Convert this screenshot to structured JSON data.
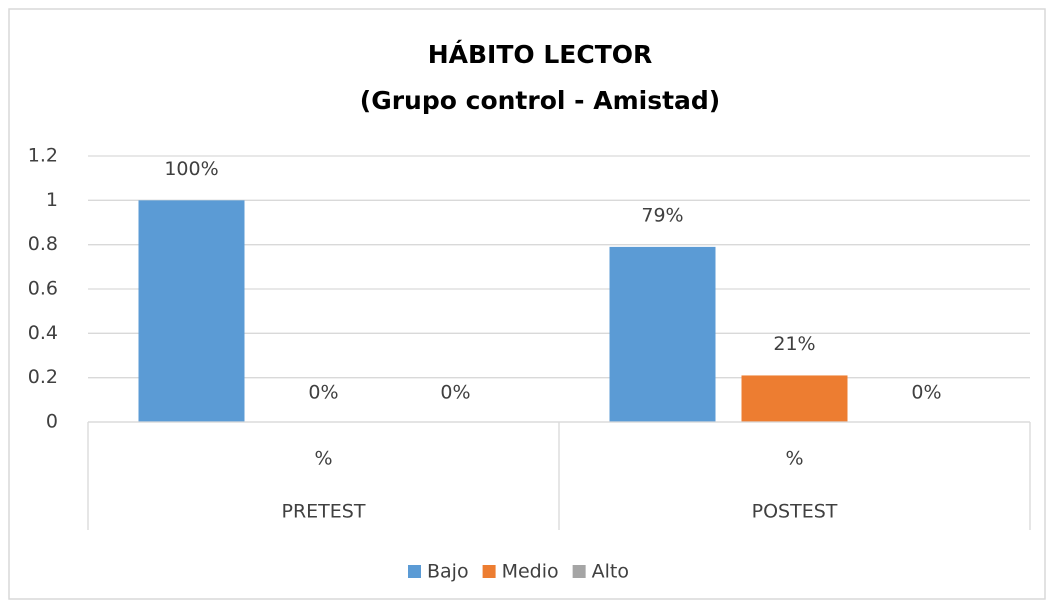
{
  "chart_data": {
    "type": "bar",
    "title": "HÁBITO LECTOR",
    "subtitle": "(Grupo control - Amistad)",
    "categories": [
      "%",
      "%"
    ],
    "groups": [
      "PRETEST",
      "POSTEST"
    ],
    "series": [
      {
        "name": "Bajo",
        "color": "#5b9bd5",
        "values": [
          1,
          0.79
        ],
        "value_labels": [
          "100%",
          "79%"
        ]
      },
      {
        "name": "Medio",
        "color": "#ed7d31",
        "values": [
          0,
          0.21
        ],
        "value_labels": [
          "0%",
          "21%"
        ]
      },
      {
        "name": "Alto",
        "color": "#a5a5a5",
        "values": [
          0,
          0
        ],
        "value_labels": [
          "0%",
          "0%"
        ]
      }
    ],
    "ylim": [
      0,
      1.2
    ],
    "yticks": [
      0,
      0.2,
      0.4,
      0.6,
      0.8,
      1,
      1.2
    ],
    "grid": true,
    "legend": "bottom"
  }
}
